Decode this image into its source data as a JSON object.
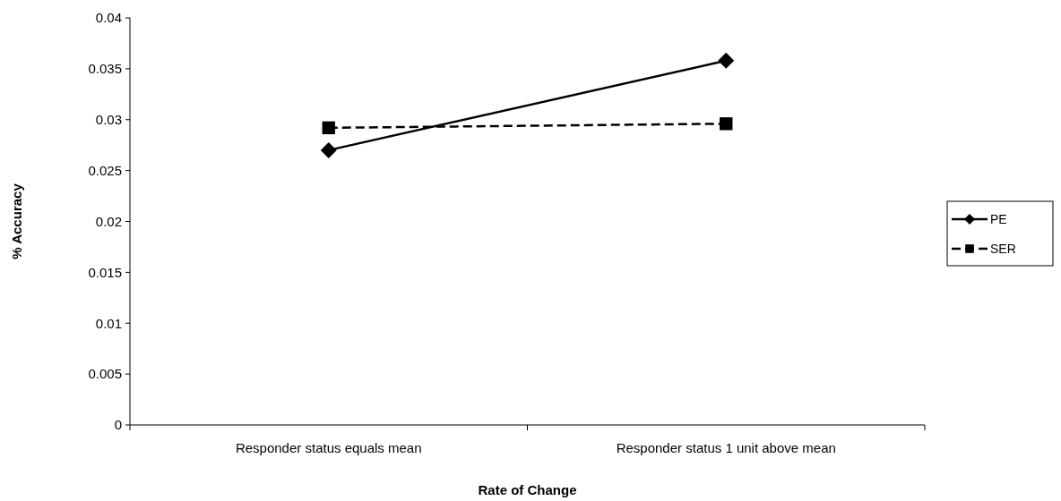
{
  "chart_data": {
    "type": "line",
    "xlabel": "Rate of Change",
    "ylabel": "% Accuracy",
    "categories": [
      "Responder status equals mean",
      "Responder status 1 unit above mean"
    ],
    "series": [
      {
        "name": "PE",
        "color": "#000000",
        "values": [
          0.027,
          0.0358
        ],
        "marker": "diamond",
        "line_style": "solid"
      },
      {
        "name": "SER",
        "color": "#000000",
        "values": [
          0.0292,
          0.0296
        ],
        "marker": "square",
        "line_style": "dashed"
      }
    ],
    "ylim": [
      0,
      0.04
    ],
    "yticks": [
      0,
      0.005,
      0.01,
      0.015,
      0.02,
      0.025,
      0.03,
      0.035,
      0.04
    ],
    "grid": false,
    "legend": "right"
  }
}
